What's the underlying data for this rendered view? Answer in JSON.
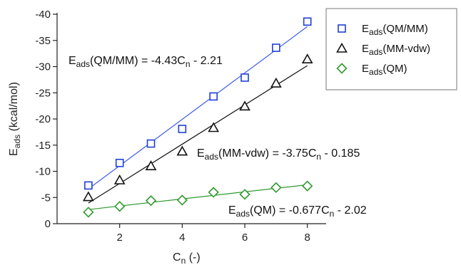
{
  "chart_data": {
    "type": "scatter",
    "xlabel": {
      "main": "C",
      "sub": "n",
      "tail": " (-)"
    },
    "ylabel": {
      "main": "E",
      "sub": "ads",
      "tail": " (kcal/mol)"
    },
    "xlim": [
      0,
      8.6
    ],
    "ylim": [
      0,
      -40
    ],
    "x_ticks": [
      2,
      4,
      6,
      8
    ],
    "y_ticks": [
      0,
      -5,
      -10,
      -15,
      -20,
      -25,
      -30,
      -35,
      -40
    ],
    "series": [
      {
        "name": {
          "main": "E",
          "sub": "ads",
          "tail": "(QM/MM)"
        },
        "marker": "square",
        "color": "#1f3fd6",
        "line_color": "#3b5ce6",
        "x": [
          1,
          2,
          3,
          4,
          5,
          6,
          7,
          8
        ],
        "y": [
          -7.3,
          -11.6,
          -15.3,
          -18.1,
          -24.3,
          -27.9,
          -33.6,
          -38.6
        ],
        "fit": {
          "slope": -4.43,
          "intercept": -2.21
        },
        "annotation": {
          "parts": [
            "E",
            "ads",
            "(QM/MM) = -4.43C",
            "n",
            " - 2.21"
          ]
        }
      },
      {
        "name": {
          "main": "E",
          "sub": "ads",
          "tail": "(MM-vdw)"
        },
        "marker": "triangle",
        "color": "#111111",
        "line_color": "#111111",
        "x": [
          1,
          2,
          3,
          4,
          5,
          6,
          7,
          8
        ],
        "y": [
          -5.1,
          -8.3,
          -11.0,
          -13.8,
          -18.3,
          -22.4,
          -26.8,
          -31.4
        ],
        "fit": {
          "slope": -3.75,
          "intercept": -0.185
        },
        "annotation": {
          "parts": [
            "E",
            "ads",
            "(MM-vdw) = -3.75C",
            "n",
            " - 0.185"
          ]
        }
      },
      {
        "name": {
          "main": "E",
          "sub": "ads",
          "tail": "(QM)"
        },
        "marker": "diamond",
        "color": "#2e9a2e",
        "line_color": "#2e9a2e",
        "x": [
          1,
          2,
          3,
          4,
          5,
          6,
          7,
          8
        ],
        "y": [
          -2.2,
          -3.3,
          -4.4,
          -4.5,
          -6.0,
          -5.6,
          -6.9,
          -7.2
        ],
        "fit": {
          "slope": -0.677,
          "intercept": -2.02
        },
        "annotation": {
          "parts": [
            "E",
            "ads",
            "(QM) = -0.677C",
            "n",
            " - 2.02"
          ]
        }
      }
    ],
    "legend_position": "top-right",
    "grid": false
  }
}
